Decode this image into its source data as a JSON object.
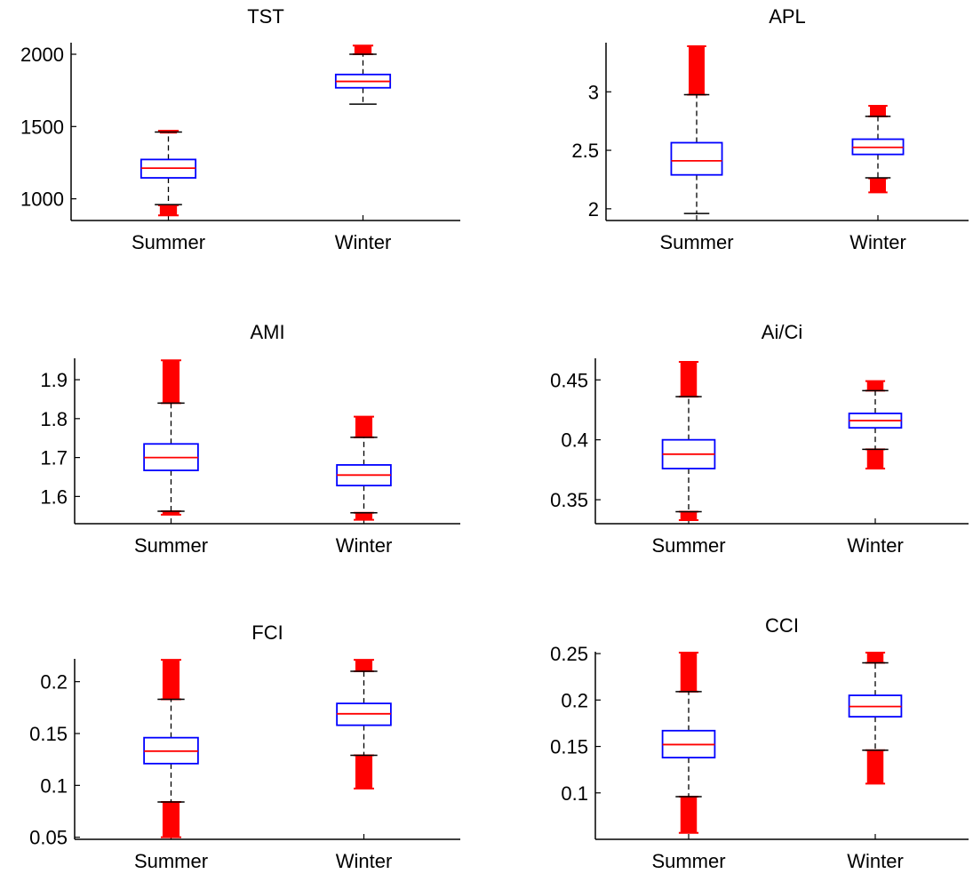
{
  "colors": {
    "box": "#0000ff",
    "median": "#ff0000",
    "whisker": "#000000",
    "outlier": "#ff0000",
    "axis": "#000000"
  },
  "chart_data": [
    {
      "type": "box",
      "title": "TST",
      "categories": [
        "Summer",
        "Winter"
      ],
      "ylim": [
        850,
        2080
      ],
      "yticks": [
        1000,
        1500,
        2000
      ],
      "ytick_labels": [
        "1000",
        "1500",
        "2000"
      ],
      "boxes": [
        {
          "whisker_low": 960,
          "q1": 1145,
          "median": 1212,
          "q3": 1272,
          "whisker_high": 1462,
          "outliers_low": [
            885,
            955
          ],
          "outliers_high": [
            1470,
            1470
          ]
        },
        {
          "whisker_low": 1655,
          "q1": 1768,
          "median": 1812,
          "q3": 1860,
          "whisker_high": 2000,
          "outliers_low": [],
          "outliers_high": [
            2000,
            2060
          ]
        }
      ]
    },
    {
      "type": "box",
      "title": "APL",
      "categories": [
        "Summer",
        "Winter"
      ],
      "ylim": [
        1.9,
        3.42
      ],
      "yticks": [
        2,
        2.5,
        3
      ],
      "ytick_labels": [
        "2",
        "2.5",
        "3"
      ],
      "boxes": [
        {
          "whisker_low": 1.96,
          "q1": 2.29,
          "median": 2.41,
          "q3": 2.565,
          "whisker_high": 2.975,
          "outliers_low": [],
          "outliers_high": [
            2.975,
            3.39
          ]
        },
        {
          "whisker_low": 2.265,
          "q1": 2.465,
          "median": 2.525,
          "q3": 2.595,
          "whisker_high": 2.79,
          "outliers_low": [
            2.14,
            2.26
          ],
          "outliers_high": [
            2.79,
            2.88
          ]
        }
      ]
    },
    {
      "type": "box",
      "title": "AMI",
      "categories": [
        "Summer",
        "Winter"
      ],
      "ylim": [
        1.53,
        1.955
      ],
      "yticks": [
        1.6,
        1.7,
        1.8,
        1.9
      ],
      "ytick_labels": [
        "1.6",
        "1.7",
        "1.8",
        "1.9"
      ],
      "boxes": [
        {
          "whisker_low": 1.562,
          "q1": 1.667,
          "median": 1.7,
          "q3": 1.735,
          "whisker_high": 1.84,
          "outliers_low": [
            1.553,
            1.562
          ],
          "outliers_high": [
            1.84,
            1.95
          ]
        },
        {
          "whisker_low": 1.558,
          "q1": 1.628,
          "median": 1.655,
          "q3": 1.681,
          "whisker_high": 1.752,
          "outliers_low": [
            1.54,
            1.558
          ],
          "outliers_high": [
            1.752,
            1.805
          ]
        }
      ]
    },
    {
      "type": "box",
      "title": "Ai/Ci",
      "categories": [
        "Summer",
        "Winter"
      ],
      "ylim": [
        0.33,
        0.468
      ],
      "yticks": [
        0.35,
        0.4,
        0.45
      ],
      "ytick_labels": [
        "0.35",
        "0.4",
        "0.45"
      ],
      "boxes": [
        {
          "whisker_low": 0.34,
          "q1": 0.376,
          "median": 0.388,
          "q3": 0.4,
          "whisker_high": 0.436,
          "outliers_low": [
            0.333,
            0.34
          ],
          "outliers_high": [
            0.436,
            0.465
          ]
        },
        {
          "whisker_low": 0.392,
          "q1": 0.41,
          "median": 0.416,
          "q3": 0.422,
          "whisker_high": 0.441,
          "outliers_low": [
            0.376,
            0.392
          ],
          "outliers_high": [
            0.441,
            0.449
          ]
        }
      ]
    },
    {
      "type": "box",
      "title": "FCI",
      "categories": [
        "Summer",
        "Winter"
      ],
      "ylim": [
        0.048,
        0.222
      ],
      "yticks": [
        0.05,
        0.1,
        0.15,
        0.2
      ],
      "ytick_labels": [
        "0.05",
        "0.1",
        "0.15",
        "0.2"
      ],
      "boxes": [
        {
          "whisker_low": 0.084,
          "q1": 0.121,
          "median": 0.133,
          "q3": 0.146,
          "whisker_high": 0.183,
          "outliers_low": [
            0.05,
            0.084
          ],
          "outliers_high": [
            0.183,
            0.221
          ]
        },
        {
          "whisker_low": 0.129,
          "q1": 0.158,
          "median": 0.169,
          "q3": 0.179,
          "whisker_high": 0.21,
          "outliers_low": [
            0.097,
            0.129
          ],
          "outliers_high": [
            0.21,
            0.221
          ]
        }
      ]
    },
    {
      "type": "box",
      "title": "CCI",
      "categories": [
        "Summer",
        "Winter"
      ],
      "ylim": [
        0.05,
        0.252
      ],
      "yticks": [
        0.1,
        0.15,
        0.2,
        0.25
      ],
      "ytick_labels": [
        "0.1",
        "0.15",
        "0.2",
        "0.25"
      ],
      "boxes": [
        {
          "whisker_low": 0.096,
          "q1": 0.138,
          "median": 0.152,
          "q3": 0.167,
          "whisker_high": 0.209,
          "outliers_low": [
            0.057,
            0.096
          ],
          "outliers_high": [
            0.209,
            0.251
          ]
        },
        {
          "whisker_low": 0.146,
          "q1": 0.182,
          "median": 0.193,
          "q3": 0.205,
          "whisker_high": 0.24,
          "outliers_low": [
            0.11,
            0.146
          ],
          "outliers_high": [
            0.24,
            0.251
          ]
        }
      ]
    }
  ]
}
